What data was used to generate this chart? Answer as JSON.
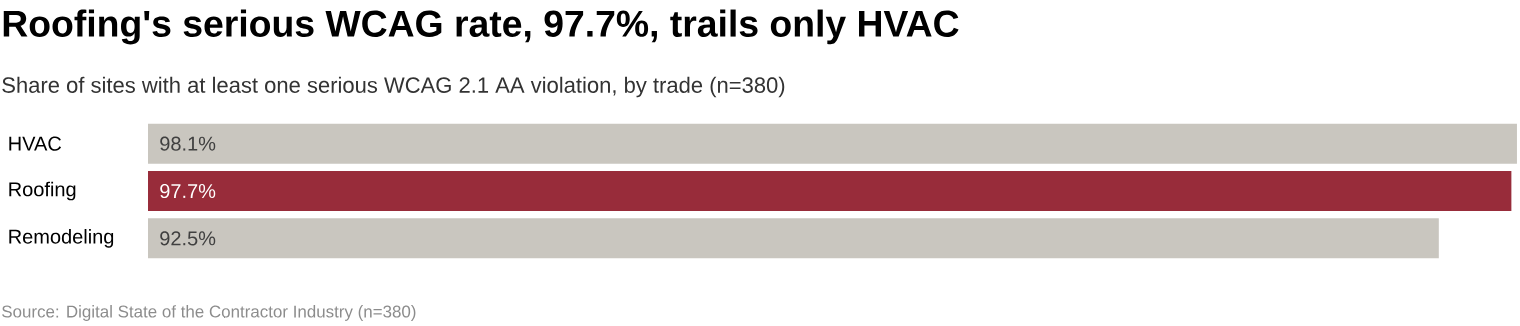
{
  "chart_data": {
    "type": "bar",
    "orientation": "horizontal",
    "title": "Roofing's serious WCAG rate, 97.7%, trails only HVAC",
    "subtitle": "Share of sites with at least one serious WCAG 2.1 AA violation, by trade (n=380)",
    "categories": [
      "HVAC",
      "Roofing",
      "Remodeling"
    ],
    "values": [
      98.1,
      97.7,
      92.5
    ],
    "value_labels": [
      "98.1%",
      "97.7%",
      "92.5%"
    ],
    "colors": [
      "#c9c6bf",
      "#982c3a",
      "#c9c6bf"
    ],
    "annotations": [
      "Source: Digital State of the Contractor Industry (n=380)"
    ]
  }
}
